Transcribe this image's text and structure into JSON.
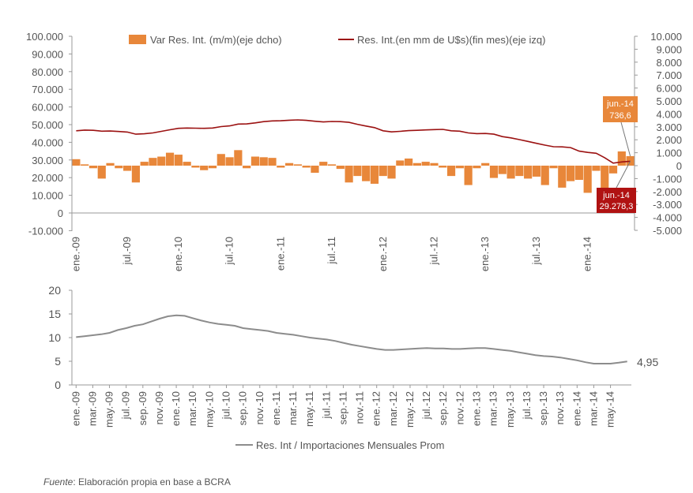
{
  "colors": {
    "bar": "#E8873A",
    "line": "#9B1111",
    "ratio": "#8C8C8C",
    "axis": "#999999",
    "label_orange": "#E8873A",
    "label_red": "#B01212"
  },
  "chart_data": [
    {
      "type": "bar+line",
      "legend": {
        "bar": "Var Res. Int. (m/m)(eje dcho)",
        "line": "Res. Int.(en mm de U$s)(fin mes)(eje izq)",
        "placement": "top"
      },
      "x_tick_labels": [
        "ene.-09",
        "jul.-09",
        "ene.-10",
        "jul.-10",
        "ene.-11",
        "jul.-11",
        "ene.-12",
        "jul.-12",
        "ene.-13",
        "jul.-13",
        "ene.-14"
      ],
      "left_axis": {
        "ylim": [
          -10000,
          100000
        ],
        "ticks": [
          "-10.000",
          "0",
          "10.000",
          "20.000",
          "30.000",
          "40.000",
          "50.000",
          "60.000",
          "70.000",
          "80.000",
          "90.000",
          "100.000"
        ]
      },
      "right_axis": {
        "ylim": [
          -5000,
          10000
        ],
        "ticks": [
          "-5.000",
          "-4.000",
          "-3.000",
          "-2.000",
          "-1.000",
          "0",
          "1.000",
          "2.000",
          "3.000",
          "4.000",
          "5.000",
          "6.000",
          "7.000",
          "8.000",
          "9.000",
          "10.000"
        ]
      },
      "months": 66,
      "series": [
        {
          "name": "Var Res. Int. (m/m)(eje dcho)",
          "axis": "right",
          "kind": "bar",
          "values": [
            500,
            100,
            -200,
            -1000,
            200,
            -200,
            -400,
            -1300,
            300,
            600,
            700,
            1000,
            850,
            300,
            -150,
            -350,
            -200,
            900,
            650,
            1200,
            -200,
            700,
            650,
            600,
            -150,
            200,
            100,
            -150,
            -550,
            300,
            100,
            -250,
            -1300,
            -800,
            -1200,
            -1400,
            -800,
            -1000,
            400,
            550,
            200,
            300,
            200,
            -150,
            -800,
            -200,
            -1500,
            -200,
            200,
            -950,
            -650,
            -1000,
            -800,
            -1000,
            -850,
            -1500,
            -200,
            -1700,
            -1200,
            -1100,
            -2100,
            -400,
            -2700,
            -600,
            1100,
            736.6
          ]
        },
        {
          "name": "Res. Int.(en mm de U$s)(fin mes)(eje izq)",
          "axis": "left",
          "kind": "line",
          "values": [
            46500,
            46900,
            46800,
            46300,
            46400,
            46100,
            45800,
            44600,
            44800,
            45300,
            46200,
            47100,
            47900,
            48100,
            48000,
            47900,
            48100,
            48900,
            49300,
            50300,
            50400,
            51000,
            51700,
            52100,
            52200,
            52500,
            52700,
            52400,
            51900,
            51500,
            51800,
            51700,
            51300,
            50200,
            49200,
            48300,
            46500,
            45900,
            46200,
            46600,
            46800,
            47000,
            47200,
            47300,
            46500,
            46300,
            45300,
            44900,
            45000,
            44600,
            43200,
            42500,
            41500,
            40500,
            39400,
            38400,
            37500,
            37400,
            37000,
            35000,
            34300,
            33800,
            31300,
            28200,
            28900,
            29278.3
          ]
        }
      ],
      "annotations": [
        {
          "text": [
            "jun.-14",
            "736,6"
          ],
          "series": "bar"
        },
        {
          "text": [
            "jun.-14",
            "29.278,3"
          ],
          "series": "line"
        }
      ]
    },
    {
      "type": "line",
      "legend": {
        "label": "Res. Int / Importaciones Mensuales Prom",
        "placement": "bottom"
      },
      "x_tick_labels": [
        "ene.-09",
        "mar.-09",
        "may.-09",
        "jul.-09",
        "sep.-09",
        "nov.-09",
        "ene.-10",
        "mar.-10",
        "may.-10",
        "jul.-10",
        "sep.-10",
        "nov.-10",
        "ene.-11",
        "mar.-11",
        "may.-11",
        "jul.-11",
        "sep.-11",
        "nov.-11",
        "ene.-12",
        "mar.-12",
        "may.-12",
        "jul.-12",
        "sep.-12",
        "nov.-12",
        "ene.-13",
        "mar.-13",
        "may.-13",
        "jul.-13",
        "sep.-13",
        "nov.-13",
        "ene.-14",
        "mar.-14",
        "may.-14"
      ],
      "ylim": [
        0,
        20
      ],
      "y_ticks": [
        "0",
        "5",
        "10",
        "15",
        "20"
      ],
      "series": [
        {
          "name": "Res. Int / Importaciones Mensuales Prom",
          "values": [
            10.1,
            10.3,
            10.5,
            10.7,
            11.0,
            11.6,
            12.0,
            12.5,
            12.8,
            13.4,
            14.0,
            14.5,
            14.7,
            14.6,
            14.1,
            13.6,
            13.2,
            12.9,
            12.7,
            12.5,
            12.0,
            11.8,
            11.6,
            11.4,
            11.0,
            10.8,
            10.6,
            10.3,
            10.0,
            9.8,
            9.6,
            9.3,
            8.9,
            8.5,
            8.2,
            7.9,
            7.6,
            7.4,
            7.4,
            7.5,
            7.6,
            7.7,
            7.8,
            7.7,
            7.7,
            7.6,
            7.6,
            7.7,
            7.8,
            7.8,
            7.6,
            7.4,
            7.2,
            6.9,
            6.6,
            6.3,
            6.1,
            6.0,
            5.8,
            5.5,
            5.2,
            4.8,
            4.5,
            4.5,
            4.5,
            4.7,
            4.95
          ]
        }
      ],
      "end_label": "4,95"
    }
  ],
  "source": {
    "label": "Fuente",
    "text": "Elaboración propia en base a BCRA"
  }
}
